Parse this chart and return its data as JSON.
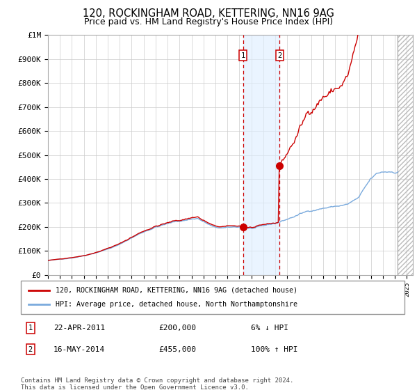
{
  "title": "120, ROCKINGHAM ROAD, KETTERING, NN16 9AG",
  "subtitle": "Price paid vs. HM Land Registry's House Price Index (HPI)",
  "title_fontsize": 10.5,
  "subtitle_fontsize": 9,
  "ylabel_ticks": [
    "£0",
    "£100K",
    "£200K",
    "£300K",
    "£400K",
    "£500K",
    "£600K",
    "£700K",
    "£800K",
    "£900K",
    "£1M"
  ],
  "ytick_values": [
    0,
    100000,
    200000,
    300000,
    400000,
    500000,
    600000,
    700000,
    800000,
    900000,
    1000000
  ],
  "ylim": [
    0,
    1000000
  ],
  "xlim_start": 1995.0,
  "xlim_end": 2025.5,
  "transaction1_x": 2011.31,
  "transaction1_y": 200000,
  "transaction2_x": 2014.37,
  "transaction2_y": 455000,
  "hpi_line_color": "#7aaadd",
  "property_line_color": "#cc0000",
  "shade_color": "#ddeeff",
  "shade_alpha": 0.6,
  "legend1_label": "120, ROCKINGHAM ROAD, KETTERING, NN16 9AG (detached house)",
  "legend2_label": "HPI: Average price, detached house, North Northamptonshire",
  "note1_date": "22-APR-2011",
  "note1_price": "£200,000",
  "note1_hpi": "6% ↓ HPI",
  "note2_date": "16-MAY-2014",
  "note2_price": "£455,000",
  "note2_hpi": "100% ↑ HPI",
  "footer": "Contains HM Land Registry data © Crown copyright and database right 2024.\nThis data is licensed under the Open Government Licence v3.0.",
  "hatch_start": 2024.25,
  "hatch_end": 2025.5
}
